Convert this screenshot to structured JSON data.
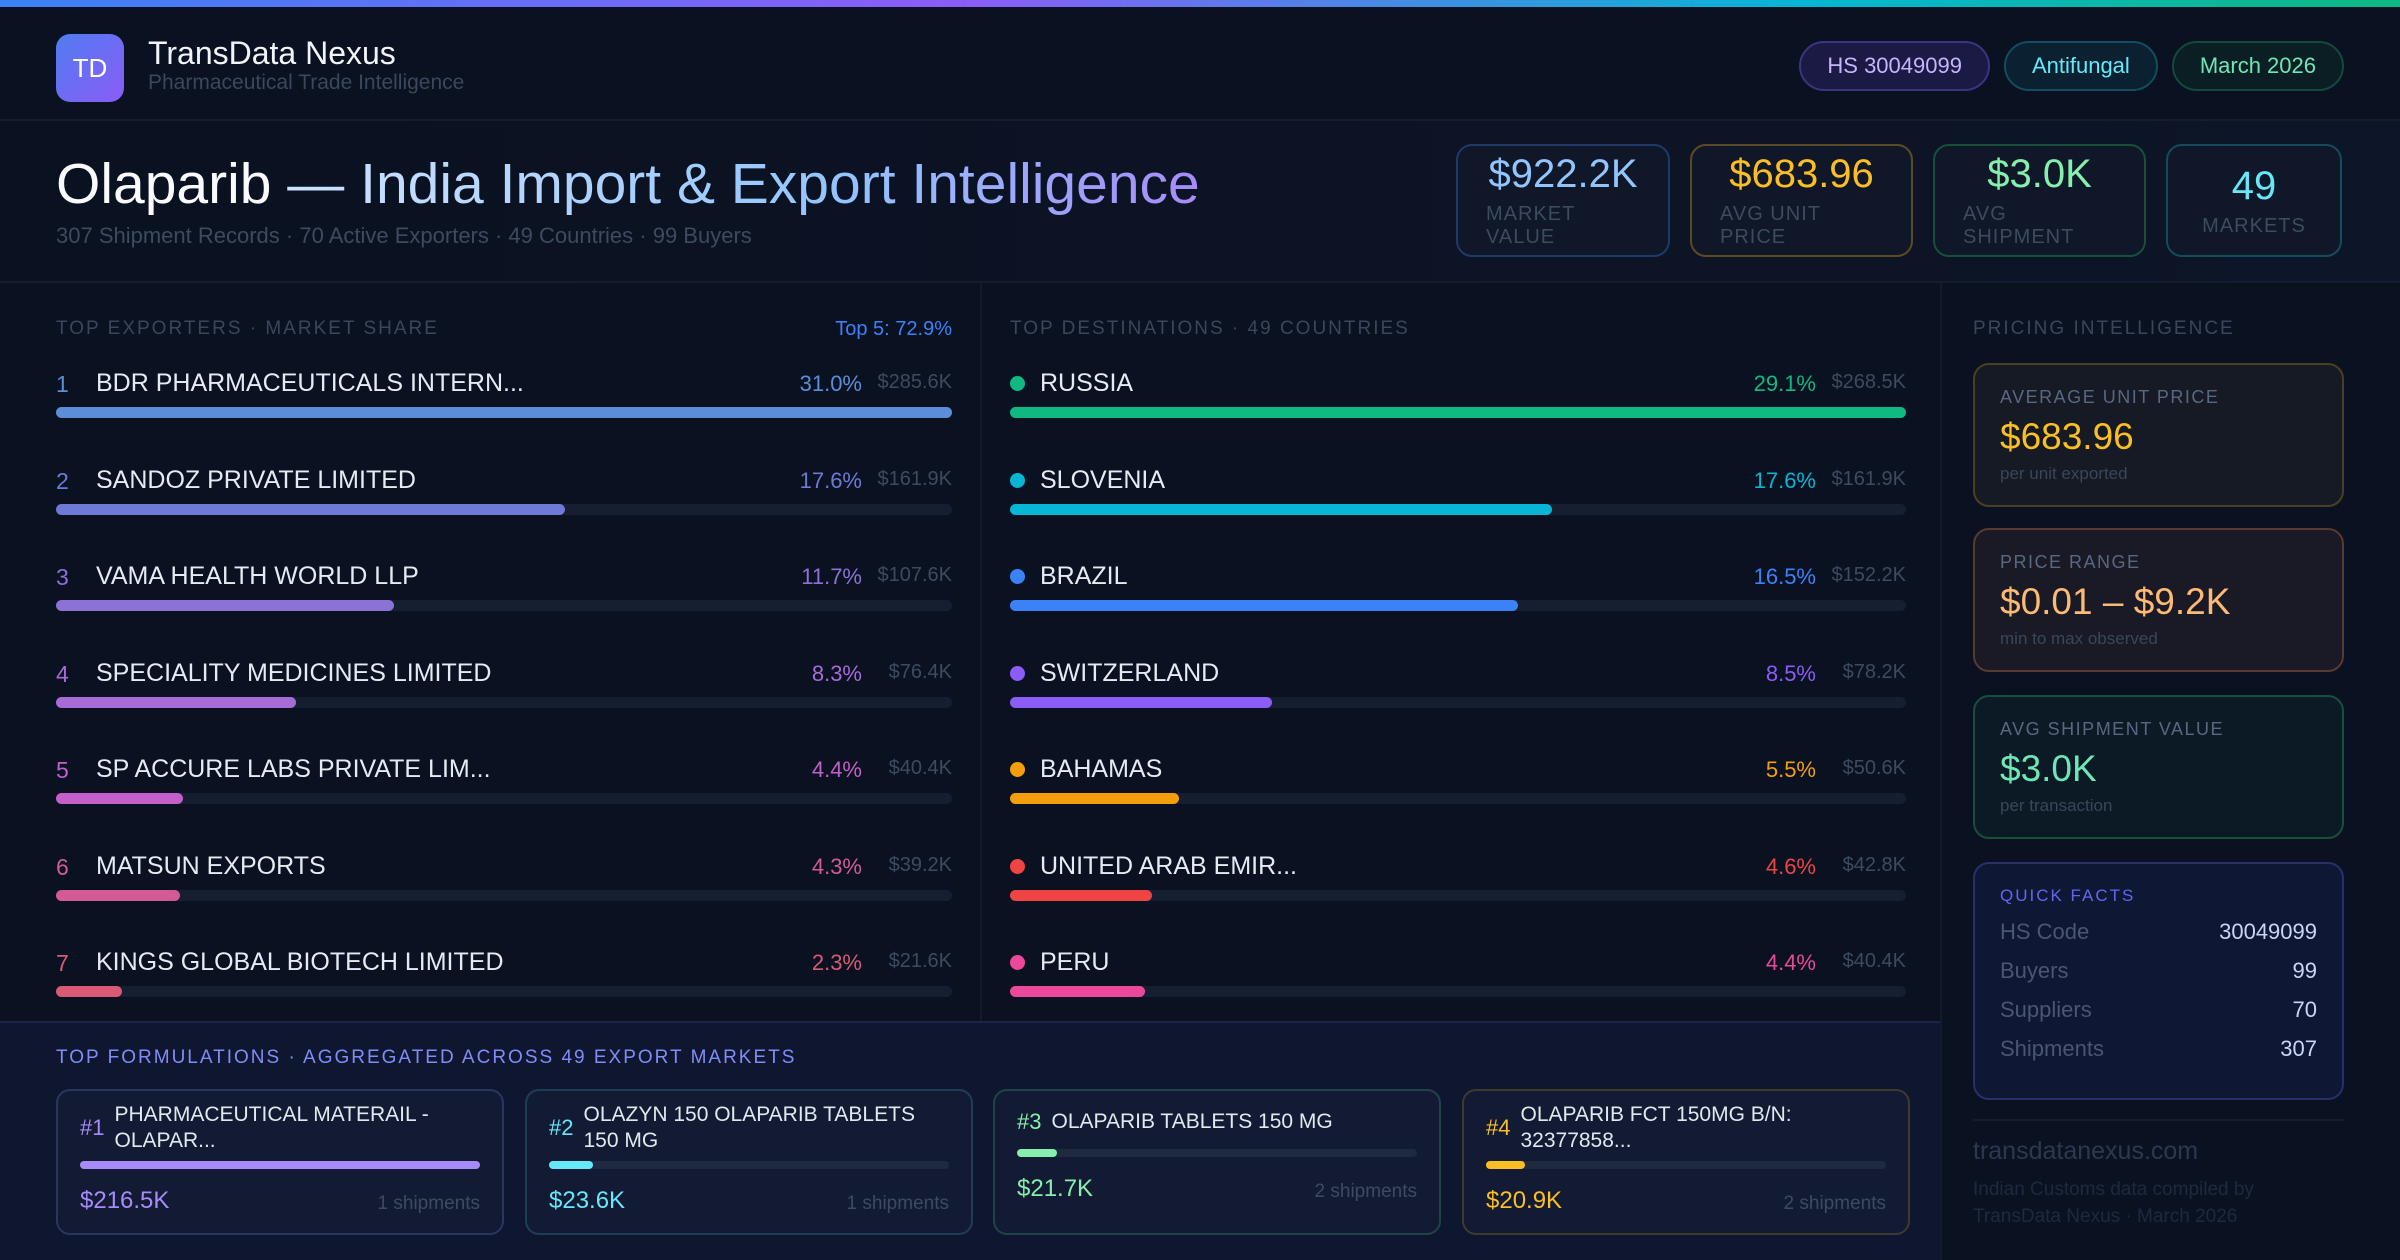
{
  "header": {
    "logo_text": "TD",
    "brand": "TransData Nexus",
    "tagline": "Pharmaceutical Trade Intelligence",
    "pills": [
      {
        "label": "HS 30049099",
        "color": "#c4b5fd",
        "border": "#3b3580",
        "bg": "#1a1a44"
      },
      {
        "label": "Antifungal",
        "color": "#67e8f9",
        "border": "#124e60",
        "bg": "#0b2030"
      },
      {
        "label": "March 2026",
        "color": "#6ee7b7",
        "border": "#124a3c",
        "bg": "#0b1e24"
      }
    ]
  },
  "hero": {
    "title_main": "Olaparib",
    "title_rest": " — India Import & Export Intelligence",
    "subtitle": "307 Shipment Records · 70 Active Exporters · 49 Countries · 99 Buyers",
    "kpis": [
      {
        "value": "$922.2K",
        "label": "MARKET VALUE",
        "color": "#93c5fd",
        "border": "#1e3a6a"
      },
      {
        "value": "$683.96",
        "label": "AVG UNIT PRICE",
        "color": "#fbbf24",
        "border": "#5c4a22"
      },
      {
        "value": "$3.0K",
        "label": "AVG SHIPMENT",
        "color": "#86efac",
        "border": "#17503a"
      },
      {
        "value": "49",
        "label": "MARKETS",
        "color": "#67e8f9",
        "border": "#164a5e"
      }
    ]
  },
  "exporters": {
    "heading": "TOP EXPORTERS · MARKET SHARE",
    "summary": "Top 5: 72.9%",
    "items": [
      {
        "rank": "1",
        "name": "BDR PHARMACEUTICALS INTERN...",
        "pct": "31.0%",
        "share": 31.0,
        "value": "$285.6K",
        "color": "#5b8ed8"
      },
      {
        "rank": "2",
        "name": "SANDOZ PRIVATE LIMITED",
        "pct": "17.6%",
        "share": 17.6,
        "value": "$161.9K",
        "color": "#6d7ad6"
      },
      {
        "rank": "3",
        "name": "VAMA HEALTH WORLD LLP",
        "pct": "11.7%",
        "share": 11.7,
        "value": "$107.6K",
        "color": "#8b72d4"
      },
      {
        "rank": "4",
        "name": "SPECIALITY MEDICINES LIMITED",
        "pct": "8.3%",
        "share": 8.3,
        "value": "$76.4K",
        "color": "#a66bd6"
      },
      {
        "rank": "5",
        "name": "SP ACCURE LABS PRIVATE LIM...",
        "pct": "4.4%",
        "share": 4.4,
        "value": "$40.4K",
        "color": "#c25fc8"
      },
      {
        "rank": "6",
        "name": "MATSUN EXPORTS",
        "pct": "4.3%",
        "share": 4.3,
        "value": "$39.2K",
        "color": "#d45a96"
      },
      {
        "rank": "7",
        "name": "KINGS GLOBAL BIOTECH LIMITED",
        "pct": "2.3%",
        "share": 2.3,
        "value": "$21.6K",
        "color": "#d85a74"
      }
    ]
  },
  "destinations": {
    "heading": "TOP DESTINATIONS · 49 COUNTRIES",
    "items": [
      {
        "name": "RUSSIA",
        "pct": "29.1%",
        "share": 29.1,
        "value": "$268.5K",
        "color": "#10b981"
      },
      {
        "name": "SLOVENIA",
        "pct": "17.6%",
        "share": 17.6,
        "value": "$161.9K",
        "color": "#06b6d4"
      },
      {
        "name": "BRAZIL",
        "pct": "16.5%",
        "share": 16.5,
        "value": "$152.2K",
        "color": "#3b82f6"
      },
      {
        "name": "SWITZERLAND",
        "pct": "8.5%",
        "share": 8.5,
        "value": "$78.2K",
        "color": "#8b5cf6"
      },
      {
        "name": "BAHAMAS",
        "pct": "5.5%",
        "share": 5.5,
        "value": "$50.6K",
        "color": "#f59e0b"
      },
      {
        "name": "UNITED ARAB EMIR...",
        "pct": "4.6%",
        "share": 4.6,
        "value": "$42.8K",
        "color": "#ef4444"
      },
      {
        "name": "PERU",
        "pct": "4.4%",
        "share": 4.4,
        "value": "$40.4K",
        "color": "#ec4899"
      }
    ]
  },
  "pricing": {
    "heading": "PRICING INTELLIGENCE",
    "cards": [
      {
        "label": "AVERAGE UNIT PRICE",
        "value": "$683.96",
        "sub": "per unit exported",
        "color": "#fbbf24",
        "border": "#4a3f22",
        "bg": "#151a24"
      },
      {
        "label": "PRICE RANGE",
        "value": "$0.01 – $9.2K",
        "sub": "min to max observed",
        "color": "#fdba74",
        "border": "#5a3a2a",
        "bg": "#1a1a26"
      },
      {
        "label": "AVG SHIPMENT VALUE",
        "value": "$3.0K",
        "sub": "per transaction",
        "color": "#6ee7b7",
        "border": "#16503a",
        "bg": "#0c1a26"
      }
    ],
    "quick_facts": {
      "heading": "QUICK FACTS",
      "rows": [
        {
          "key": "HS Code",
          "value": "30049099"
        },
        {
          "key": "Buyers",
          "value": "99"
        },
        {
          "key": "Suppliers",
          "value": "70"
        },
        {
          "key": "Shipments",
          "value": "307"
        }
      ]
    },
    "domain": "transdatanexus.com",
    "credit": "Indian Customs data compiled by TransData Nexus · March 2026"
  },
  "formulations": {
    "heading": "TOP FORMULATIONS · AGGREGATED ACROSS 49 EXPORT MARKETS",
    "items": [
      {
        "rank": "#1",
        "name": "PHARMACEUTICAL MATERAIL - OLAPAR...",
        "value": "$216.5K",
        "amount": 216.5,
        "shipments": "1 shipments",
        "color": "#a78bfa",
        "border": "#2c3460"
      },
      {
        "rank": "#2",
        "name": "OLAZYN 150 OLAPARIB TABLETS 150 MG",
        "value": "$23.6K",
        "amount": 23.6,
        "shipments": "1 shipments",
        "color": "#67e8f9",
        "border": "#1e3e55"
      },
      {
        "rank": "#3",
        "name": "OLAPARIB TABLETS 150 MG",
        "value": "$21.7K",
        "amount": 21.7,
        "shipments": "2 shipments",
        "color": "#86efac",
        "border": "#1e4448"
      },
      {
        "rank": "#4",
        "name": "OLAPARIB FCT 150MG B/N: 32377858...",
        "value": "$20.9K",
        "amount": 20.9,
        "shipments": "2 shipments",
        "color": "#fbbf24",
        "border": "#3e3a2e"
      }
    ]
  }
}
